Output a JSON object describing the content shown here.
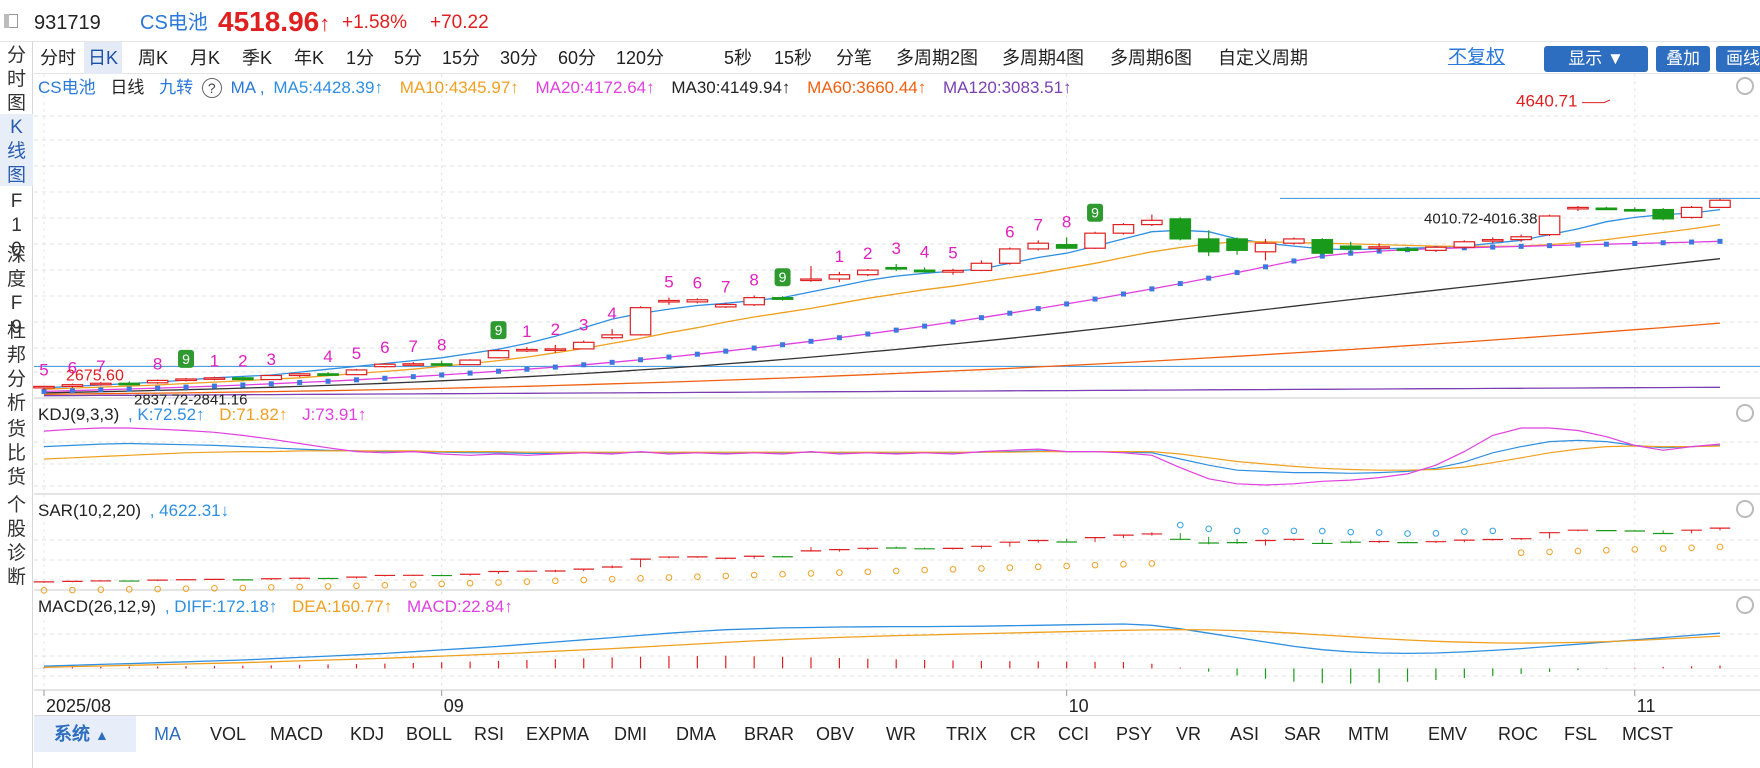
{
  "header": {
    "code": "931719",
    "name": "CS电池",
    "price": "4518.96",
    "change_pct": "+1.58%",
    "change": "+70.22",
    "up_color": "#e02020"
  },
  "left_nav": [
    "分时图",
    "K线图",
    "F10",
    "深度F9",
    "杜邦分析",
    "货比货",
    "个股诊断"
  ],
  "timeframes": [
    "分时",
    "日K",
    "周K",
    "月K",
    "季K",
    "年K",
    "1分",
    "5分",
    "15分",
    "30分",
    "60分",
    "120分",
    "5秒",
    "15秒",
    "分笔",
    "多周期2图",
    "多周期4图",
    "多周期6图",
    "自定义周期"
  ],
  "active_timeframe": "日K",
  "right_controls": {
    "adjust": "不复权",
    "display": "显示",
    "overlay": "叠加",
    "draw": "画线"
  },
  "main_legend": {
    "name": "CS电池",
    "period": "日线",
    "nine": "九转",
    "help": "?",
    "ind": "MA ,",
    "ma5": "MA5:4428.39↑",
    "ma10": "MA10:4345.97↑",
    "ma20": "MA20:4172.64↑",
    "ma30": "MA30:4149.94↑",
    "ma60": "MA60:3660.44↑",
    "ma120": "MA120:3083.51↑"
  },
  "kdj_legend": {
    "name": "KDJ(9,3,3)",
    "k": ", K:72.52↑",
    "d": "D:71.82↑",
    "j": "J:73.91↑"
  },
  "sar_legend": {
    "name": "SAR(10,2,20)",
    "v": ", 4622.31↓"
  },
  "macd_legend": {
    "name": "MACD(26,12,9)",
    "diff": ", DIFF:172.18↑",
    "dea": "DEA:160.77↑",
    "macd": "MACD:22.84↑"
  },
  "annotations": {
    "high": "4640.71",
    "low_start": "2675.60",
    "gap1": "2837.72-2841.16",
    "gap2": "4010.72-4016.38"
  },
  "date_axis": [
    "2025/08",
    "09",
    "10",
    "11"
  ],
  "bottom_tabs": [
    "系统",
    "MA",
    "VOL",
    "MACD",
    "KDJ",
    "BOLL",
    "RSI",
    "EXPMA",
    "DMI",
    "DMA",
    "BRAR",
    "OBV",
    "WR",
    "TRIX",
    "CR",
    "CCI",
    "PSY",
    "VR",
    "ASI",
    "SAR",
    "MTM",
    "EMV",
    "ROC",
    "FSL",
    "MCST"
  ],
  "nine_turn_labels": [
    "5",
    "6",
    "7",
    "8",
    "9",
    "1",
    "2",
    "3",
    "4",
    "5",
    "6",
    "7",
    "8",
    "9",
    "1",
    "2",
    "3",
    "4",
    "5",
    "6",
    "7",
    "8",
    "9",
    "1",
    "2",
    "3",
    "4",
    "5",
    "6",
    "7",
    "8",
    "9"
  ],
  "colors": {
    "up": "#e02020",
    "down": "#1a9a1a",
    "ma5": "#2f8fe0",
    "ma10": "#f0a020",
    "ma20": "#e040e0",
    "ma30": "#333333",
    "ma60": "#f06010",
    "ma120": "#7a3fb0",
    "accent": "#2e6ec0"
  },
  "chart_data": {
    "type": "candlestick",
    "title": "CS电池 日线",
    "x_ticks": [
      "2025/08",
      "09",
      "10",
      "11"
    ],
    "ylim": [
      2640,
      4700
    ],
    "candles": [
      {
        "o": 2690,
        "h": 2705,
        "l": 2676,
        "c": 2700
      },
      {
        "o": 2700,
        "h": 2720,
        "l": 2690,
        "c": 2712
      },
      {
        "o": 2712,
        "h": 2730,
        "l": 2705,
        "c": 2722
      },
      {
        "o": 2722,
        "h": 2735,
        "l": 2712,
        "c": 2720
      },
      {
        "o": 2725,
        "h": 2748,
        "l": 2718,
        "c": 2742
      },
      {
        "o": 2742,
        "h": 2760,
        "l": 2735,
        "c": 2752
      },
      {
        "o": 2752,
        "h": 2768,
        "l": 2742,
        "c": 2760
      },
      {
        "o": 2760,
        "h": 2770,
        "l": 2740,
        "c": 2748
      },
      {
        "o": 2748,
        "h": 2780,
        "l": 2745,
        "c": 2776
      },
      {
        "o": 2776,
        "h": 2794,
        "l": 2765,
        "c": 2788
      },
      {
        "o": 2788,
        "h": 2800,
        "l": 2778,
        "c": 2782
      },
      {
        "o": 2782,
        "h": 2822,
        "l": 2780,
        "c": 2815
      },
      {
        "o": 2838,
        "h": 2862,
        "l": 2832,
        "c": 2855
      },
      {
        "o": 2855,
        "h": 2870,
        "l": 2846,
        "c": 2858
      },
      {
        "o": 2858,
        "h": 2880,
        "l": 2840,
        "c": 2852
      },
      {
        "o": 2852,
        "h": 2890,
        "l": 2850,
        "c": 2884
      },
      {
        "o": 2900,
        "h": 2960,
        "l": 2895,
        "c": 2950
      },
      {
        "o": 2950,
        "h": 2975,
        "l": 2940,
        "c": 2958
      },
      {
        "o": 2960,
        "h": 2990,
        "l": 2935,
        "c": 2962
      },
      {
        "o": 2962,
        "h": 3020,
        "l": 2958,
        "c": 3008
      },
      {
        "o": 3040,
        "h": 3100,
        "l": 3030,
        "c": 3060
      },
      {
        "o": 3060,
        "h": 3260,
        "l": 3055,
        "c": 3250
      },
      {
        "o": 3290,
        "h": 3320,
        "l": 3270,
        "c": 3300
      },
      {
        "o": 3290,
        "h": 3315,
        "l": 3280,
        "c": 3305
      },
      {
        "o": 3255,
        "h": 3285,
        "l": 3248,
        "c": 3272
      },
      {
        "o": 3270,
        "h": 3335,
        "l": 3262,
        "c": 3320
      },
      {
        "o": 3320,
        "h": 3330,
        "l": 3300,
        "c": 3308
      },
      {
        "o": 3440,
        "h": 3540,
        "l": 3430,
        "c": 3450
      },
      {
        "o": 3450,
        "h": 3500,
        "l": 3430,
        "c": 3480
      },
      {
        "o": 3480,
        "h": 3520,
        "l": 3470,
        "c": 3512
      },
      {
        "o": 3530,
        "h": 3555,
        "l": 3505,
        "c": 3520
      },
      {
        "o": 3512,
        "h": 3530,
        "l": 3498,
        "c": 3500
      },
      {
        "o": 3498,
        "h": 3522,
        "l": 3480,
        "c": 3510
      },
      {
        "o": 3510,
        "h": 3580,
        "l": 3505,
        "c": 3560
      },
      {
        "o": 3560,
        "h": 3670,
        "l": 3550,
        "c": 3660
      },
      {
        "o": 3660,
        "h": 3720,
        "l": 3650,
        "c": 3700
      },
      {
        "o": 3690,
        "h": 3740,
        "l": 3660,
        "c": 3665
      },
      {
        "o": 3665,
        "h": 3780,
        "l": 3660,
        "c": 3770
      },
      {
        "o": 3770,
        "h": 3840,
        "l": 3760,
        "c": 3830
      },
      {
        "o": 3830,
        "h": 3900,
        "l": 3820,
        "c": 3860
      },
      {
        "o": 3870,
        "h": 3880,
        "l": 3720,
        "c": 3730
      },
      {
        "o": 3730,
        "h": 3790,
        "l": 3610,
        "c": 3640
      },
      {
        "o": 3730,
        "h": 3740,
        "l": 3620,
        "c": 3650
      },
      {
        "o": 3640,
        "h": 3730,
        "l": 3580,
        "c": 3700
      },
      {
        "o": 3700,
        "h": 3740,
        "l": 3690,
        "c": 3730
      },
      {
        "o": 3725,
        "h": 3735,
        "l": 3620,
        "c": 3630
      },
      {
        "o": 3680,
        "h": 3710,
        "l": 3630,
        "c": 3660
      },
      {
        "o": 3670,
        "h": 3700,
        "l": 3640,
        "c": 3675
      },
      {
        "o": 3660,
        "h": 3675,
        "l": 3645,
        "c": 3650
      },
      {
        "o": 3650,
        "h": 3680,
        "l": 3640,
        "c": 3672
      },
      {
        "o": 3672,
        "h": 3720,
        "l": 3660,
        "c": 3710
      },
      {
        "o": 3715,
        "h": 3740,
        "l": 3700,
        "c": 3725
      },
      {
        "o": 3725,
        "h": 3760,
        "l": 3710,
        "c": 3745
      },
      {
        "o": 3760,
        "h": 3900,
        "l": 3750,
        "c": 3890
      },
      {
        "o": 3940,
        "h": 3960,
        "l": 3925,
        "c": 3950
      },
      {
        "o": 3945,
        "h": 3955,
        "l": 3935,
        "c": 3940
      },
      {
        "o": 3935,
        "h": 3950,
        "l": 3920,
        "c": 3930
      },
      {
        "o": 3935,
        "h": 3945,
        "l": 3860,
        "c": 3870
      },
      {
        "o": 3880,
        "h": 3960,
        "l": 3872,
        "c": 3950
      },
      {
        "o": 3950,
        "h": 4010,
        "l": 3945,
        "c": 4000
      }
    ],
    "ma": {
      "MA5": [
        2690,
        2700,
        2710,
        2720,
        2730,
        2745,
        2760,
        2770,
        2780,
        2800,
        2820,
        2840,
        2860,
        2880,
        2900,
        2930,
        2960,
        3000,
        3050,
        3110,
        3170,
        3210,
        3240,
        3265,
        3280,
        3300,
        3320,
        3360,
        3400,
        3440,
        3470,
        3490,
        3505,
        3520,
        3560,
        3600,
        3630,
        3680,
        3730,
        3780,
        3790,
        3780,
        3730,
        3700,
        3680,
        3660,
        3655,
        3660,
        3665,
        3670,
        3680,
        3700,
        3720,
        3760,
        3800,
        3850,
        3880,
        3900,
        3910,
        3935
      ],
      "MA10": [
        2680,
        2688,
        2695,
        2702,
        2710,
        2720,
        2730,
        2740,
        2750,
        2760,
        2775,
        2790,
        2805,
        2820,
        2840,
        2860,
        2880,
        2905,
        2935,
        2965,
        3000,
        3035,
        3075,
        3110,
        3150,
        3185,
        3215,
        3245,
        3280,
        3315,
        3345,
        3375,
        3400,
        3430,
        3460,
        3490,
        3525,
        3560,
        3600,
        3640,
        3670,
        3695,
        3710,
        3710,
        3705,
        3700,
        3695,
        3690,
        3685,
        3680,
        3678,
        3678,
        3680,
        3690,
        3705,
        3725,
        3750,
        3775,
        3800,
        3830
      ],
      "MA20": [
        2665,
        2670,
        2676,
        2682,
        2688,
        2695,
        2702,
        2710,
        2718,
        2727,
        2736,
        2746,
        2757,
        2768,
        2780,
        2793,
        2806,
        2820,
        2835,
        2851,
        2868,
        2886,
        2905,
        2925,
        2946,
        2968,
        2991,
        3015,
        3040,
        3066,
        3093,
        3121,
        3150,
        3180,
        3211,
        3243,
        3276,
        3310,
        3345,
        3381,
        3418,
        3456,
        3495,
        3535,
        3576,
        3610,
        3630,
        3645,
        3655,
        3662,
        3668,
        3673,
        3678,
        3683,
        3688,
        3693,
        3698,
        3703,
        3708,
        3713
      ],
      "MA30": [
        2655,
        2659,
        2663,
        2667,
        2672,
        2677,
        2682,
        2688,
        2694,
        2700,
        2707,
        2714,
        2722,
        2730,
        2739,
        2748,
        2758,
        2768,
        2779,
        2790,
        2802,
        2815,
        2828,
        2842,
        2857,
        2872,
        2888,
        2905,
        2922,
        2940,
        2958,
        2977,
        2996,
        3016,
        3036,
        3057,
        3078,
        3100,
        3122,
        3145,
        3168,
        3191,
        3214,
        3237,
        3260,
        3283,
        3306,
        3328,
        3350,
        3372,
        3394,
        3416,
        3438,
        3460,
        3482,
        3504,
        3526,
        3548,
        3570,
        3592
      ],
      "MA60": [
        2645,
        2647,
        2649,
        2651,
        2653,
        2655,
        2658,
        2661,
        2664,
        2667,
        2670,
        2674,
        2678,
        2682,
        2686,
        2691,
        2696,
        2701,
        2706,
        2712,
        2718,
        2724,
        2730,
        2737,
        2744,
        2751,
        2758,
        2766,
        2774,
        2782,
        2790,
        2799,
        2808,
        2817,
        2826,
        2836,
        2846,
        2856,
        2866,
        2877,
        2888,
        2899,
        2910,
        2922,
        2934,
        2946,
        2958,
        2971,
        2984,
        2997,
        3010,
        3024,
        3038,
        3052,
        3066,
        3081,
        3096,
        3111,
        3126,
        3142
      ],
      "MA120": [
        2635,
        2636,
        2637,
        2638,
        2639,
        2640,
        2641,
        2642,
        2643,
        2644,
        2645,
        2646,
        2647,
        2648,
        2649,
        2650,
        2651,
        2652,
        2653,
        2654,
        2655,
        2656,
        2657,
        2658,
        2659,
        2660,
        2661,
        2662,
        2663,
        2664,
        2665,
        2666,
        2667,
        2668,
        2669,
        2670,
        2671,
        2672,
        2673,
        2674,
        2675,
        2676,
        2677,
        2678,
        2679,
        2680,
        2681,
        2682,
        2683,
        2684,
        2685,
        2686,
        2687,
        2688,
        2689,
        2690,
        2691,
        2692,
        2693,
        2694
      ]
    },
    "kdj": {
      "K": [
        70,
        72,
        74,
        75,
        74,
        73,
        72,
        70,
        68,
        66,
        64,
        63,
        62,
        62,
        61,
        60,
        60,
        59,
        59,
        60,
        60,
        61,
        60,
        60,
        59,
        60,
        60,
        61,
        60,
        60,
        59,
        60,
        60,
        61,
        62,
        63,
        62,
        62,
        61,
        60,
        50,
        40,
        32,
        30,
        28,
        28,
        27,
        28,
        30,
        35,
        45,
        60,
        70,
        78,
        80,
        78,
        72,
        68,
        70,
        72
      ],
      "D": [
        50,
        52,
        54,
        56,
        58,
        60,
        61,
        62,
        62,
        63,
        63,
        63,
        63,
        63,
        62,
        62,
        62,
        61,
        61,
        61,
        61,
        61,
        61,
        61,
        61,
        61,
        61,
        61,
        61,
        61,
        61,
        61,
        61,
        61,
        61,
        62,
        62,
        62,
        62,
        62,
        58,
        52,
        46,
        42,
        38,
        35,
        33,
        32,
        32,
        33,
        37,
        44,
        52,
        60,
        66,
        70,
        71,
        70,
        70,
        71
      ],
      "J": [
        95,
        98,
        100,
        100,
        98,
        96,
        93,
        88,
        82,
        75,
        68,
        62,
        60,
        62,
        58,
        56,
        58,
        56,
        58,
        60,
        58,
        62,
        58,
        60,
        58,
        60,
        58,
        62,
        58,
        60,
        58,
        60,
        58,
        62,
        64,
        66,
        62,
        62,
        60,
        56,
        36,
        18,
        10,
        8,
        10,
        14,
        16,
        20,
        26,
        40,
        62,
        88,
        100,
        100,
        96,
        86,
        72,
        64,
        70,
        74
      ]
    },
    "sar": [
      2640,
      2648,
      2656,
      2664,
      2672,
      2680,
      2690,
      2700,
      2712,
      2724,
      2736,
      2750,
      2764,
      2780,
      2796,
      2812,
      2830,
      2850,
      2870,
      2890,
      2910,
      2930,
      2950,
      2970,
      2990,
      3010,
      3030,
      3050,
      3070,
      3090,
      3110,
      3130,
      3150,
      3170,
      3190,
      3210,
      3230,
      3250,
      3270,
      3290,
      3310,
      3330,
      3350,
      3370,
      3390,
      3410,
      3430,
      3450,
      3470,
      3490,
      3510,
      3530,
      3550,
      3570,
      3590,
      3610,
      3630,
      3650,
      3670,
      3690
    ],
    "macd": {
      "DIFF": [
        10,
        14,
        18,
        22,
        26,
        30,
        34,
        38,
        44,
        50,
        56,
        62,
        68,
        76,
        84,
        92,
        100,
        110,
        120,
        130,
        140,
        150,
        160,
        168,
        176,
        180,
        184,
        186,
        188,
        189,
        190,
        190,
        191,
        192,
        194,
        196,
        198,
        200,
        202,
        196,
        180,
        160,
        140,
        120,
        100,
        85,
        75,
        70,
        68,
        70,
        75,
        82,
        90,
        100,
        110,
        120,
        130,
        140,
        150,
        160
      ],
      "DEA": [
        5,
        8,
        11,
        14,
        17,
        20,
        23,
        26,
        30,
        34,
        38,
        42,
        46,
        51,
        56,
        61,
        66,
        72,
        78,
        84,
        90,
        97,
        104,
        111,
        118,
        125,
        131,
        136,
        141,
        145,
        149,
        152,
        155,
        158,
        161,
        164,
        167,
        170,
        173,
        175,
        176,
        175,
        172,
        167,
        160,
        152,
        144,
        136,
        129,
        123,
        119,
        116,
        115,
        116,
        118,
        122,
        127,
        133,
        140,
        147
      ],
      "MACD": [
        5,
        6,
        7,
        8,
        9,
        10,
        11,
        12,
        14,
        16,
        18,
        20,
        22,
        25,
        28,
        31,
        34,
        38,
        42,
        46,
        50,
        53,
        56,
        57,
        58,
        55,
        53,
        50,
        47,
        44,
        41,
        38,
        36,
        34,
        33,
        32,
        31,
        30,
        29,
        21,
        4,
        -15,
        -32,
        -47,
        -60,
        -67,
        -69,
        -66,
        -61,
        -53,
        -44,
        -34,
        -25,
        -16,
        -8,
        -2,
        3,
        7,
        10,
        13
      ]
    }
  }
}
